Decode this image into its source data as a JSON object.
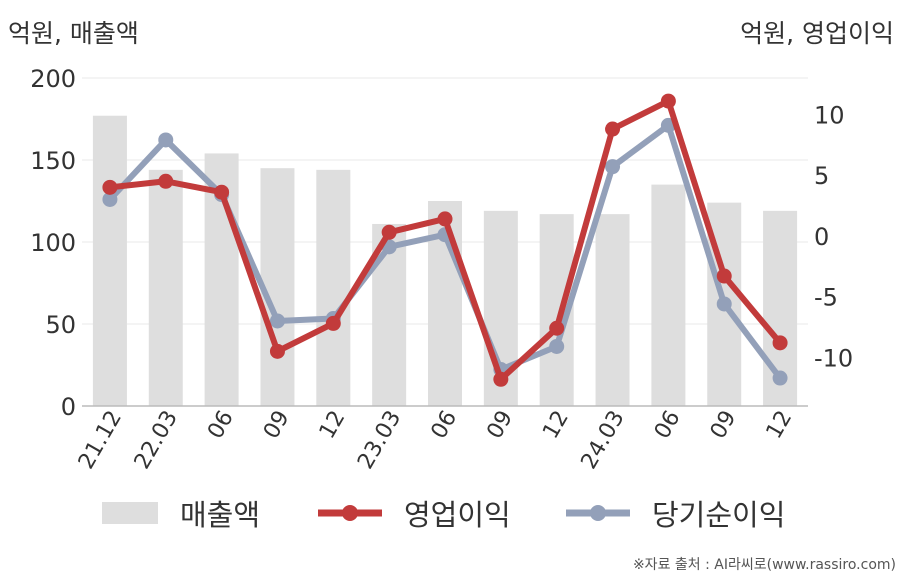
{
  "units": {
    "left": "억원, 매출액",
    "right": "억원, 영업이익"
  },
  "legend": [
    "매출액",
    "영업이익",
    "당기순이익"
  ],
  "source": "※자료 출처 : AI라씨로(www.rassiro.com)",
  "colors": {
    "bar": "#dedede",
    "op": "#c23b3b",
    "net": "#93a0b9",
    "grid": "#e8e8e8",
    "axis": "#bbbbbb"
  },
  "chart_data": {
    "type": "bar",
    "categories": [
      "21.12",
      "22.03",
      "06",
      "09",
      "12",
      "23.03",
      "06",
      "09",
      "12",
      "24.03",
      "06",
      "09",
      "12"
    ],
    "left_axis": {
      "ylim": [
        0,
        200
      ],
      "ticks": [
        0,
        50,
        100,
        150,
        200
      ]
    },
    "right_axis": {
      "ylim": [
        -14,
        13
      ],
      "ticks": [
        -10,
        -5,
        0,
        5,
        10
      ]
    },
    "series": [
      {
        "name": "매출액",
        "type": "bar",
        "axis": "left",
        "values": [
          177,
          144,
          154,
          145,
          144,
          111,
          125,
          119,
          117,
          117,
          135,
          124,
          119
        ]
      },
      {
        "name": "영업이익",
        "type": "line",
        "axis": "right",
        "values": [
          4.0,
          4.5,
          3.6,
          -9.5,
          -7.2,
          0.3,
          1.4,
          -11.8,
          -7.6,
          8.8,
          11.1,
          -3.3,
          -8.8
        ]
      },
      {
        "name": "당기순이익",
        "type": "line",
        "axis": "right",
        "values": [
          3.0,
          7.9,
          3.4,
          -7.0,
          -6.8,
          -0.9,
          0.1,
          -11.0,
          -9.1,
          5.7,
          9.1,
          -5.6,
          -11.7
        ]
      }
    ]
  }
}
